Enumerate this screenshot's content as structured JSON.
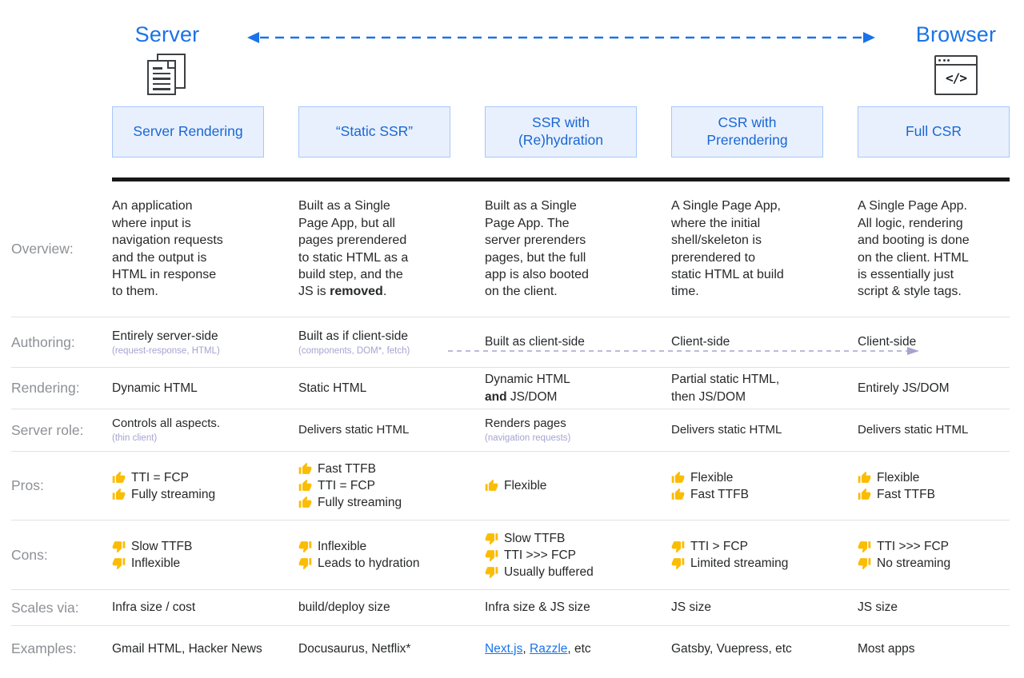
{
  "colors": {
    "accent_blue": "#1a73e8",
    "header_text_blue": "#1967d2",
    "header_box_bg": "#e8f0fe",
    "header_box_border": "#a8c7fa",
    "label_gray": "#8d9095",
    "subtext_lavender": "#a5a3d1",
    "thumb_gold": "#fbbc04",
    "link_blue": "#1a73e8",
    "divider_black": "#17181a"
  },
  "top": {
    "server_label": "Server",
    "browser_label": "Browser",
    "server_icon": "document-stack-icon",
    "browser_icon": "code-window-icon",
    "browser_icon_glyph": "</>",
    "arrow_icon": "dashed-double-headed-arrow"
  },
  "columns": [
    "Server Rendering",
    "“Static SSR”",
    "SSR with\n(Re)hydration",
    "CSR with\nPrerendering",
    "Full CSR"
  ],
  "table": {
    "rows": [
      {
        "id": "overview",
        "label": "Overview:",
        "cells": [
          {
            "main": "An application\nwhere input is\nnavigation requests\nand the output is\nHTML in response\nto them."
          },
          {
            "main": "Built as a Single\nPage App, but all\npages prerendered\nto static HTML as a\nbuild step, and the\nJS is **removed**."
          },
          {
            "main": "Built as a Single\nPage App. The\nserver prerenders\npages, but the full\napp is also booted\non the client."
          },
          {
            "main": "A Single Page App,\nwhere the initial\nshell/skeleton is\nprerendered to\nstatic HTML at build\ntime."
          },
          {
            "main": "A Single Page App.\nAll logic, rendering\nand booting is done\non the client. HTML\nis essentially just\nscript & style tags."
          }
        ]
      },
      {
        "id": "authoring",
        "label": "Authoring:",
        "has_trailing_arrow": true,
        "cells": [
          {
            "main": "Entirely server-side",
            "sub": "(request-response, HTML)"
          },
          {
            "main": "Built as if client-side",
            "sub": "(components, DOM*, fetch)"
          },
          {
            "main": "Built as client-side"
          },
          {
            "main": "Client-side"
          },
          {
            "main": "Client-side"
          }
        ]
      },
      {
        "id": "rendering",
        "label": "Rendering:",
        "cells": [
          {
            "main": "Dynamic HTML"
          },
          {
            "main": "Static HTML"
          },
          {
            "main": "Dynamic HTML\n**and** JS/DOM"
          },
          {
            "main": "Partial static HTML,\nthen JS/DOM"
          },
          {
            "main": "Entirely JS/DOM"
          }
        ]
      },
      {
        "id": "server-role",
        "label": "Server role:",
        "cells": [
          {
            "main": "Controls all aspects.",
            "sub": "(thin client)"
          },
          {
            "main": "Delivers static HTML"
          },
          {
            "main": "Renders pages",
            "sub": "(navigation requests)"
          },
          {
            "main": "Delivers static HTML"
          },
          {
            "main": "Delivers static HTML"
          }
        ]
      },
      {
        "id": "pros",
        "label": "Pros:",
        "cells": [
          {
            "items": [
              {
                "icon": "thumb-up-icon",
                "text": "TTI = FCP"
              },
              {
                "icon": "thumb-up-icon",
                "text": "Fully streaming"
              }
            ]
          },
          {
            "items": [
              {
                "icon": "thumb-up-icon",
                "text": "Fast TTFB"
              },
              {
                "icon": "thumb-up-icon",
                "text": "TTI = FCP"
              },
              {
                "icon": "thumb-up-icon",
                "text": "Fully streaming"
              }
            ]
          },
          {
            "items": [
              {
                "icon": "thumb-up-icon",
                "text": "Flexible"
              }
            ]
          },
          {
            "items": [
              {
                "icon": "thumb-up-icon",
                "text": "Flexible"
              },
              {
                "icon": "thumb-up-icon",
                "text": "Fast TTFB"
              }
            ]
          },
          {
            "items": [
              {
                "icon": "thumb-up-icon",
                "text": "Flexible"
              },
              {
                "icon": "thumb-up-icon",
                "text": "Fast TTFB"
              }
            ]
          }
        ]
      },
      {
        "id": "cons",
        "label": "Cons:",
        "cells": [
          {
            "items": [
              {
                "icon": "thumb-down-icon",
                "text": "Slow TTFB"
              },
              {
                "icon": "thumb-down-icon",
                "text": "Inflexible"
              }
            ]
          },
          {
            "items": [
              {
                "icon": "thumb-down-icon",
                "text": "Inflexible"
              },
              {
                "icon": "thumb-down-icon",
                "text": "Leads to hydration"
              }
            ]
          },
          {
            "items": [
              {
                "icon": "thumb-down-icon",
                "text": "Slow TTFB"
              },
              {
                "icon": "thumb-down-icon",
                "text": "TTI >>> FCP"
              },
              {
                "icon": "thumb-down-icon",
                "text": "Usually buffered"
              }
            ]
          },
          {
            "items": [
              {
                "icon": "thumb-down-icon",
                "text": "TTI > FCP"
              },
              {
                "icon": "thumb-down-icon",
                "text": "Limited streaming"
              }
            ]
          },
          {
            "items": [
              {
                "icon": "thumb-down-icon",
                "text": "TTI >>> FCP"
              },
              {
                "icon": "thumb-down-icon",
                "text": "No streaming"
              }
            ]
          }
        ]
      },
      {
        "id": "scales-via",
        "label": "Scales via:",
        "cells": [
          {
            "main": "Infra size / cost"
          },
          {
            "main": "build/deploy size"
          },
          {
            "main": "Infra size & JS size"
          },
          {
            "main": "JS size"
          },
          {
            "main": "JS size"
          }
        ]
      },
      {
        "id": "examples",
        "label": "Examples:",
        "cells": [
          {
            "main": "Gmail HTML, Hacker News"
          },
          {
            "main": "Docusaurus, Netflix*"
          },
          {
            "segments": [
              {
                "text": "Next.js",
                "link": true
              },
              {
                "text": ", "
              },
              {
                "text": "Razzle",
                "link": true
              },
              {
                "text": ", etc"
              }
            ]
          },
          {
            "main": "Gatsby, Vuepress, etc"
          },
          {
            "main": "Most apps"
          }
        ]
      }
    ]
  }
}
